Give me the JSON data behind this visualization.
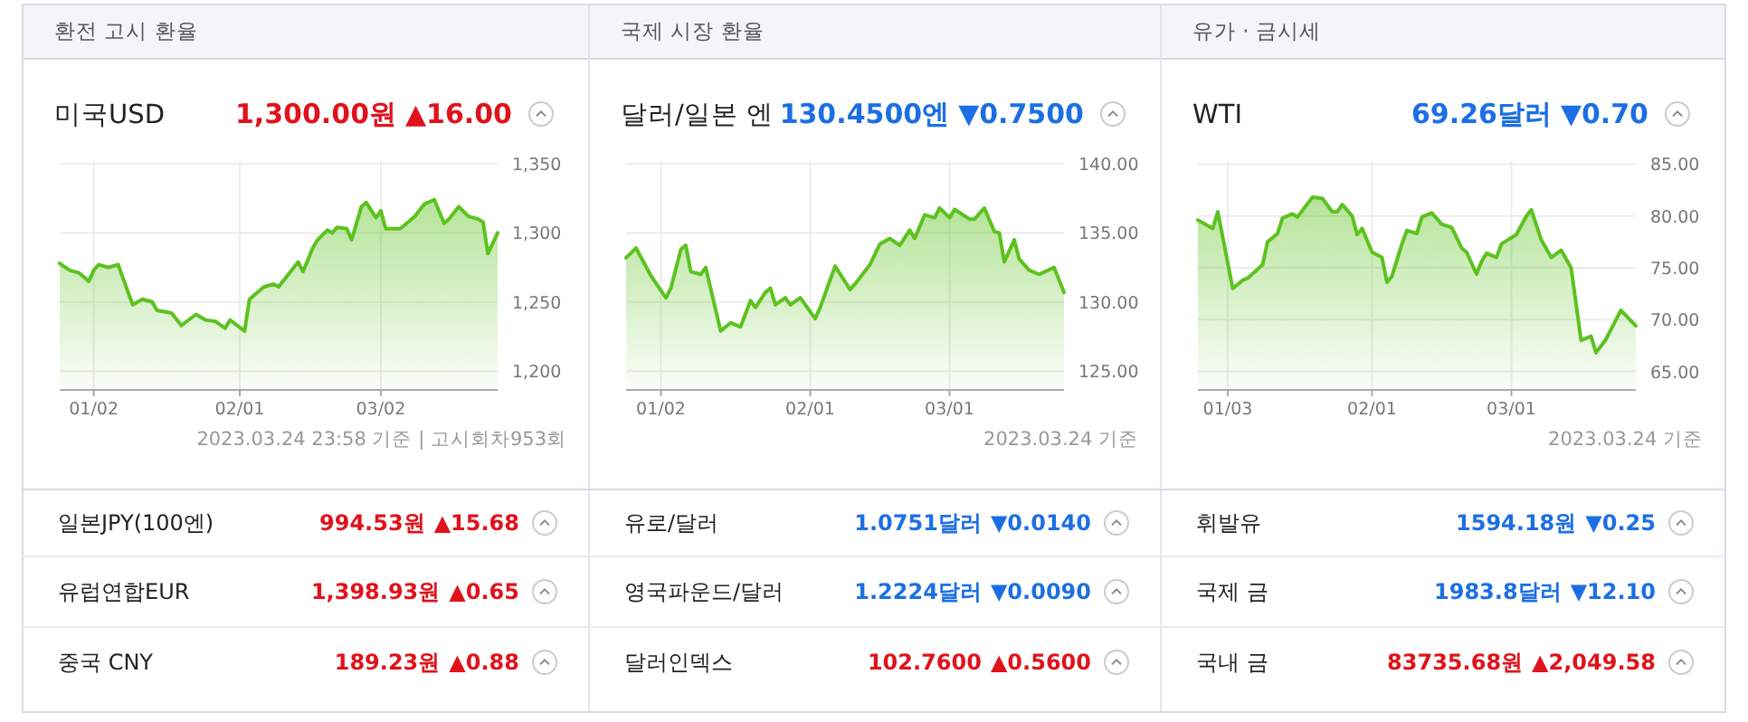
{
  "chart_data": [
    {
      "type": "area",
      "title": "환전 고시 환율",
      "annotations": [
        "2023.03.24 23:58 기준 | 고시회차953회"
      ],
      "grid": true,
      "xlim": [
        "2022-12-26",
        "2023-03-26"
      ],
      "xticks": [
        {
          "value": "2023-01-02",
          "label": "01/02"
        },
        {
          "value": "2023-02-01",
          "label": "02/01"
        },
        {
          "value": "2023-03-02",
          "label": "03/02"
        }
      ],
      "ylim": [
        1187,
        1352
      ],
      "yticks": [
        {
          "value": 1200,
          "label": "1,200"
        },
        {
          "value": 1250,
          "label": "1,250"
        },
        {
          "value": 1300,
          "label": "1,300"
        },
        {
          "value": 1350,
          "label": "1,350"
        }
      ],
      "series": [
        {
          "color": "#5cc21e",
          "x": [
            "2022-12-26",
            "2022-12-28",
            "2022-12-30",
            "2023-01-01",
            "2023-01-02",
            "2023-01-03",
            "2023-01-05",
            "2023-01-07",
            "2023-01-10",
            "2023-01-12",
            "2023-01-14",
            "2023-01-15",
            "2023-01-18",
            "2023-01-20",
            "2023-01-23",
            "2023-01-25",
            "2023-01-27",
            "2023-01-29",
            "2023-01-30",
            "2023-02-02",
            "2023-02-03",
            "2023-02-06",
            "2023-02-08",
            "2023-02-09",
            "2023-02-13",
            "2023-02-14",
            "2023-02-16",
            "2023-02-17",
            "2023-02-19",
            "2023-02-20",
            "2023-02-21",
            "2023-02-23",
            "2023-02-24",
            "2023-02-26",
            "2023-02-27",
            "2023-03-01",
            "2023-03-02",
            "2023-03-03",
            "2023-03-06",
            "2023-03-07",
            "2023-03-09",
            "2023-03-11",
            "2023-03-13",
            "2023-03-15",
            "2023-03-16",
            "2023-03-18",
            "2023-03-20",
            "2023-03-22",
            "2023-03-23",
            "2023-03-24",
            "2023-03-26"
          ],
          "values": [
            1278,
            1273,
            1271,
            1265,
            1273,
            1277,
            1275,
            1277,
            1248,
            1252,
            1250,
            1244,
            1242,
            1233,
            1241,
            1237,
            1236,
            1231,
            1237,
            1229,
            1252,
            1261,
            1263,
            1261,
            1279,
            1272,
            1289,
            1295,
            1302,
            1300,
            1304,
            1303,
            1295,
            1319,
            1322,
            1311,
            1316,
            1303,
            1303,
            1306,
            1312,
            1321,
            1324,
            1307,
            1310,
            1319,
            1312,
            1310,
            1308,
            1285,
            1300
          ]
        }
      ]
    },
    {
      "type": "area",
      "title": "국제 시장 환율",
      "annotations": [
        "2023.03.24 기준"
      ],
      "grid": true,
      "xlim": [
        "2022-12-26",
        "2023-03-24"
      ],
      "xticks": [
        {
          "value": "2023-01-02",
          "label": "01/02"
        },
        {
          "value": "2023-02-01",
          "label": "02/01"
        },
        {
          "value": "2023-03-01",
          "label": "03/01"
        }
      ],
      "ylim": [
        123.7,
        140.2
      ],
      "yticks": [
        {
          "value": 125,
          "label": "125.00"
        },
        {
          "value": 130,
          "label": "130.00"
        },
        {
          "value": 135,
          "label": "135.00"
        },
        {
          "value": 140,
          "label": "140.00"
        }
      ],
      "series": [
        {
          "color": "#5cc21e",
          "x": [
            "2022-12-26",
            "2022-12-28",
            "2022-12-31",
            "2023-01-03",
            "2023-01-04",
            "2023-01-06",
            "2023-01-07",
            "2023-01-08",
            "2023-01-10",
            "2023-01-11",
            "2023-01-14",
            "2023-01-16",
            "2023-01-18",
            "2023-01-20",
            "2023-01-21",
            "2023-01-23",
            "2023-01-24",
            "2023-01-25",
            "2023-01-27",
            "2023-01-28",
            "2023-01-30",
            "2023-02-02",
            "2023-02-03",
            "2023-02-06",
            "2023-02-09",
            "2023-02-10",
            "2023-02-13",
            "2023-02-15",
            "2023-02-17",
            "2023-02-19",
            "2023-02-21",
            "2023-02-22",
            "2023-02-24",
            "2023-02-26",
            "2023-02-27",
            "2023-03-01",
            "2023-03-02",
            "2023-03-05",
            "2023-03-06",
            "2023-03-08",
            "2023-03-10",
            "2023-03-11",
            "2023-03-12",
            "2023-03-14",
            "2023-03-15",
            "2023-03-17",
            "2023-03-19",
            "2023-03-22",
            "2023-03-24"
          ],
          "values": [
            133.2,
            133.9,
            131.9,
            130.3,
            131.0,
            133.8,
            134.1,
            132.2,
            132.0,
            132.5,
            127.9,
            128.5,
            128.2,
            130.1,
            129.6,
            130.7,
            131.0,
            129.8,
            130.3,
            129.8,
            130.3,
            128.8,
            129.6,
            132.6,
            130.9,
            131.3,
            132.7,
            134.2,
            134.6,
            134.1,
            135.2,
            134.6,
            136.3,
            136.1,
            136.8,
            136.1,
            136.7,
            136.0,
            136.0,
            136.8,
            135.1,
            135.0,
            132.9,
            134.5,
            133.1,
            132.3,
            132.0,
            132.5,
            130.7
          ]
        }
      ]
    },
    {
      "type": "area",
      "title": "유가 · 금시세",
      "annotations": [
        "2023.03.24 기준"
      ],
      "grid": true,
      "xlim": [
        "2022-12-28",
        "2023-03-26"
      ],
      "xticks": [
        {
          "value": "2023-01-03",
          "label": "01/03"
        },
        {
          "value": "2023-02-01",
          "label": "02/01"
        },
        {
          "value": "2023-03-01",
          "label": "03/01"
        }
      ],
      "ylim": [
        63.3,
        85.3
      ],
      "yticks": [
        {
          "value": 65,
          "label": "65.00"
        },
        {
          "value": 70,
          "label": "70.00"
        },
        {
          "value": 75,
          "label": "75.00"
        },
        {
          "value": 80,
          "label": "80.00"
        },
        {
          "value": 85,
          "label": "85.00"
        }
      ],
      "series": [
        {
          "color": "#5cc21e",
          "x": [
            "2022-12-28",
            "2022-12-31",
            "2023-01-01",
            "2023-01-04",
            "2023-01-06",
            "2023-01-07",
            "2023-01-10",
            "2023-01-11",
            "2023-01-13",
            "2023-01-14",
            "2023-01-16",
            "2023-01-17",
            "2023-01-20",
            "2023-01-22",
            "2023-01-24",
            "2023-01-25",
            "2023-01-26",
            "2023-01-28",
            "2023-01-29",
            "2023-01-30",
            "2023-02-01",
            "2023-02-03",
            "2023-02-04",
            "2023-02-05",
            "2023-02-07",
            "2023-02-08",
            "2023-02-10",
            "2023-02-11",
            "2023-02-13",
            "2023-02-15",
            "2023-02-17",
            "2023-02-19",
            "2023-02-20",
            "2023-02-22",
            "2023-02-23",
            "2023-02-24",
            "2023-02-26",
            "2023-02-27",
            "2023-03-02",
            "2023-03-04",
            "2023-03-05",
            "2023-03-07",
            "2023-03-09",
            "2023-03-11",
            "2023-03-13",
            "2023-03-15",
            "2023-03-17",
            "2023-03-18",
            "2023-03-20",
            "2023-03-23",
            "2023-03-26"
          ],
          "values": [
            79.6,
            78.8,
            80.4,
            73.0,
            73.8,
            74.0,
            75.3,
            77.5,
            78.3,
            79.8,
            80.2,
            79.9,
            81.8,
            81.7,
            80.4,
            80.4,
            81.1,
            80.0,
            78.2,
            78.8,
            76.5,
            76.0,
            73.6,
            74.2,
            77.3,
            78.6,
            78.3,
            79.9,
            80.3,
            79.2,
            78.9,
            76.9,
            76.5,
            74.4,
            75.6,
            76.4,
            76.0,
            77.3,
            78.2,
            80.0,
            80.6,
            77.7,
            76.0,
            76.7,
            75.0,
            68.0,
            68.4,
            66.8,
            68.1,
            70.9,
            69.4
          ]
        }
      ]
    },
    {
      "type": "other",
      "annotations": [
        "미국USD",
        "1,300.00원",
        "▲16.00",
        "달러/일본 엔",
        "130.4500엔",
        "▼0.7500",
        "WTI",
        "69.26달러",
        "▼0.70",
        "일본JPY(100엔)",
        "994.53원",
        "▲15.68",
        "유로/달러",
        "1.0751달러",
        "▼0.0140",
        "휘발유",
        "1594.18원",
        "▼0.25",
        "유럽연합EUR",
        "1,398.93원",
        "▲0.65",
        "영국파운드/달러",
        "1.2224달러",
        "▼0.0090",
        "국제 금",
        "1983.8달러",
        "▼12.10",
        "중국 CNY",
        "189.23원",
        "▲0.88",
        "달러인덱스",
        "102.7600",
        "▲0.5600",
        "국내 금",
        "83735.68원",
        "▲2,049.58"
      ],
      "colors": [
        "#222222",
        "#e0121b",
        "#e0121b",
        "#222222",
        "#1c6fe3",
        "#1c6fe3",
        "#222222",
        "#1c6fe3",
        "#1c6fe3",
        "#222222",
        "#e0121b",
        "#e0121b",
        "#222222",
        "#1c6fe3",
        "#1c6fe3",
        "#222222",
        "#1c6fe3",
        "#1c6fe3",
        "#222222",
        "#e0121b",
        "#e0121b",
        "#222222",
        "#1c6fe3",
        "#1c6fe3",
        "#222222",
        "#1c6fe3",
        "#1c6fe3",
        "#222222",
        "#e0121b",
        "#e0121b",
        "#222222",
        "#e0121b",
        "#e0121b",
        "#222222",
        "#e0121b",
        "#e0121b"
      ]
    }
  ]
}
